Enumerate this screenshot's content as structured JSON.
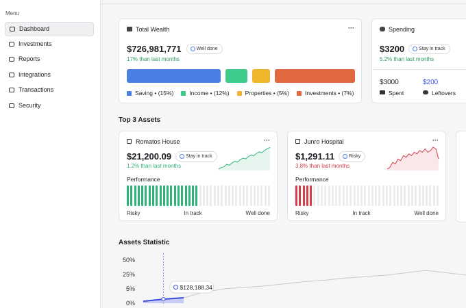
{
  "sidebar": {
    "heading": "Menu",
    "items": [
      "Dashboard",
      "Investments",
      "Reports",
      "Integrations",
      "Transactions",
      "Security"
    ],
    "active": 0
  },
  "wealth": {
    "title": "Total Wealth",
    "menu": "···",
    "amount": "$726,981,771",
    "badge": "Well done",
    "change": "17% than last months",
    "legend": [
      {
        "label": "Saving • (15%)",
        "color": "#4a80e4"
      },
      {
        "label": "Income • (12%)",
        "color": "#3ecb8b"
      },
      {
        "label": "Properties • (5%)",
        "color": "#f0b62b"
      },
      {
        "label": "Investments • (7%)",
        "color": "#e0683f"
      }
    ]
  },
  "spending": {
    "title": "Spending",
    "amount": "$3200",
    "badge": "Stay in track",
    "change": "5.2% than last months",
    "spent": {
      "amount": "$3000",
      "label": "Spent"
    },
    "leftovers": {
      "amount": "$200",
      "label": "Leftovers"
    }
  },
  "assets_heading": "Top 3 Assets",
  "assets": [
    {
      "name": "Romatos House",
      "menu": "···",
      "amount": "$21,200.09",
      "badge": "Stay in track",
      "change": "1.2% than last months",
      "color": "#2fb37a",
      "performance_title": "Performance",
      "bars_filled": 20,
      "bars_total": 40,
      "scale": [
        "Risky",
        "In track",
        "Well done"
      ],
      "trend": [
        2,
        3,
        3.5,
        5,
        4.5,
        6,
        7,
        6.5,
        8,
        9,
        8.5,
        10,
        11,
        10.5,
        12,
        13,
        12.5,
        14,
        15,
        16
      ]
    },
    {
      "name": "Junro Hospital",
      "menu": "···",
      "amount": "$1,291.11",
      "badge": "Risky",
      "change": "3.8% than last months",
      "color": "#d83b4a",
      "performance_title": "Performance",
      "bars_filled": 5,
      "bars_total": 40,
      "scale": [
        "Risky",
        "In track",
        "Well done"
      ],
      "trend": [
        3,
        4,
        7,
        6,
        9,
        8,
        11,
        10,
        12,
        11,
        13,
        12,
        14,
        13,
        15,
        13,
        14,
        16,
        15,
        9
      ]
    }
  ],
  "chart_data": {
    "type": "line",
    "title": "Assets Statistic",
    "yticks": [
      {
        "value": 50,
        "label": "50%"
      },
      {
        "value": 25,
        "label": "25%"
      },
      {
        "value": 5,
        "label": "5%"
      },
      {
        "value": 0,
        "label": "0%"
      }
    ],
    "ylim": [
      0,
      50
    ],
    "series": [
      {
        "color": "#c9c9cc",
        "values": [
          0.7,
          1.4,
          1.9,
          3.8,
          5,
          7,
          9,
          12,
          15,
          17,
          20,
          22,
          24,
          28,
          32,
          28,
          24
        ]
      }
    ],
    "highlight_color": "#3b4bdf",
    "tooltip": {
      "index": 1,
      "label": "$128,188,34"
    }
  }
}
